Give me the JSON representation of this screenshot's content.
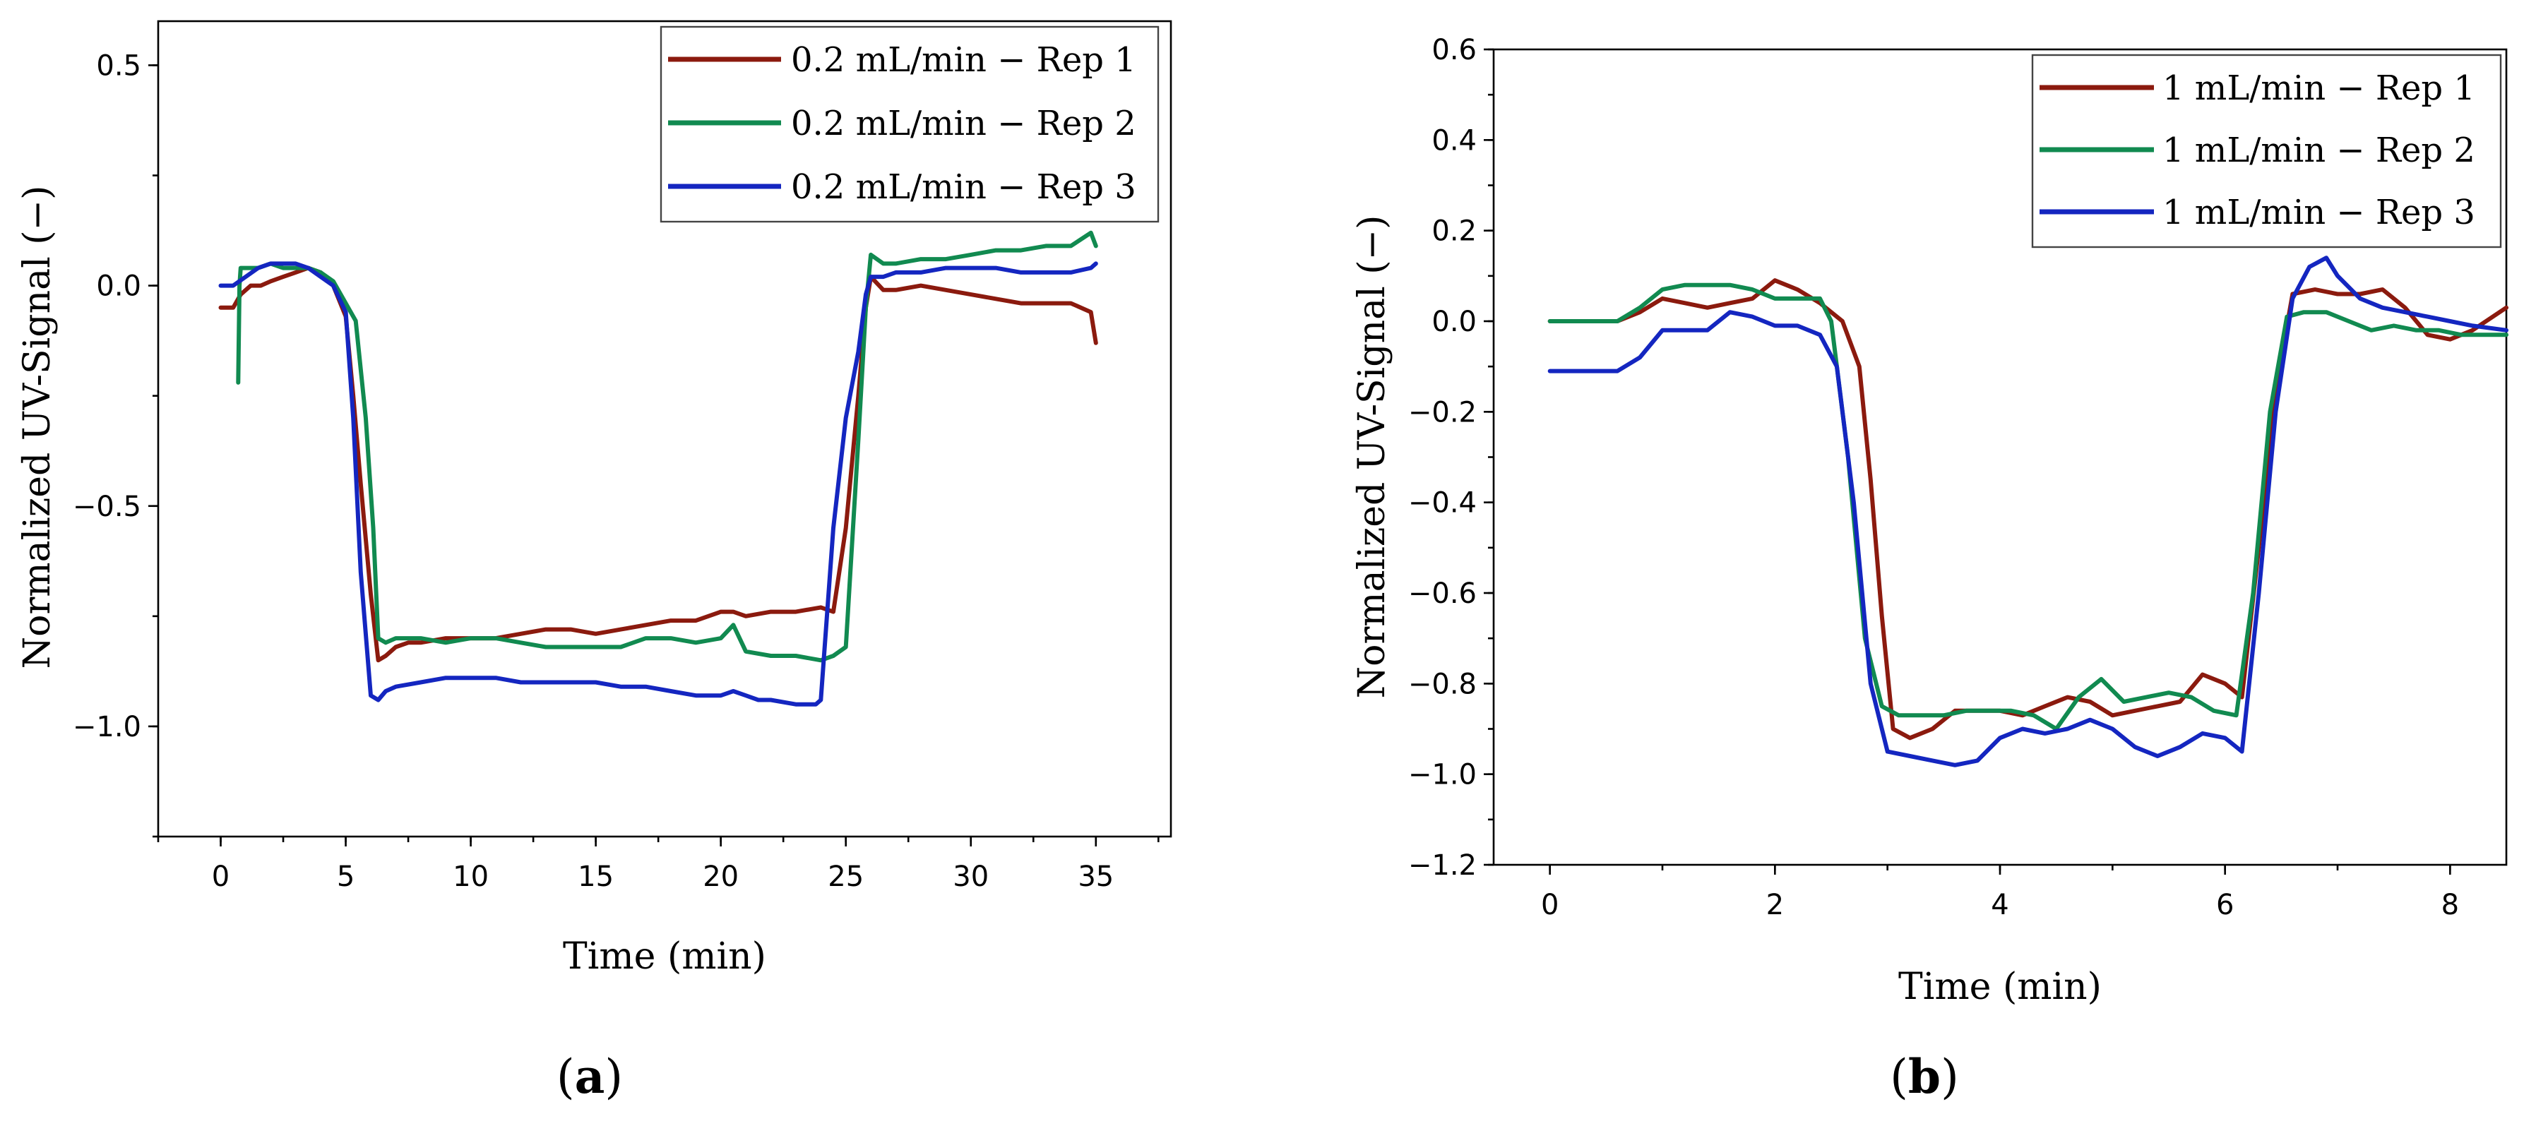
{
  "colors": {
    "rep1": "#8B1A0E",
    "rep2": "#118A50",
    "rep3": "#1426C0"
  },
  "chart_data": [
    {
      "id": "a",
      "type": "line",
      "panel_label": {
        "open": "(",
        "letter": "a",
        "close": ")"
      },
      "xlabel": "Time (min)",
      "ylabel": "Normalized UV-Signal (−)",
      "xlim": [
        -2.5,
        38
      ],
      "ylim": [
        -1.25,
        0.6
      ],
      "xticks": [
        0,
        5,
        10,
        15,
        20,
        25,
        30,
        35
      ],
      "xtick_labels": [
        "0",
        "5",
        "10",
        "15",
        "20",
        "25",
        "30",
        "35"
      ],
      "xminor": 2.5,
      "yticks": [
        0.5,
        0.0,
        -0.5,
        -1.0
      ],
      "ytick_labels": [
        "0.5",
        "0.0",
        "−0.5",
        "−1.0"
      ],
      "yminor": 0.25,
      "legend_position": "top-right",
      "series": [
        {
          "name": "0.2 mL/min − Rep 1",
          "color": "#8B1A0E",
          "x": [
            0,
            0.5,
            0.8,
            1.2,
            1.6,
            2.0,
            2.5,
            3.0,
            3.5,
            4.0,
            4.5,
            5.0,
            5.3,
            5.6,
            6.0,
            6.3,
            6.6,
            7.0,
            7.5,
            8.0,
            9.0,
            10.0,
            11.0,
            12.0,
            13.0,
            14.0,
            15.0,
            16.0,
            17.0,
            18.0,
            19.0,
            20.0,
            20.5,
            21.0,
            22.0,
            23.0,
            24.0,
            24.5,
            25.0,
            25.5,
            25.8,
            26.0,
            26.5,
            27.0,
            28.0,
            29.0,
            30.0,
            31.0,
            32.0,
            33.0,
            34.0,
            34.8,
            35.0
          ],
          "y": [
            -0.05,
            -0.05,
            -0.02,
            0.0,
            0.0,
            0.01,
            0.02,
            0.03,
            0.04,
            0.03,
            0.0,
            -0.07,
            -0.25,
            -0.45,
            -0.7,
            -0.85,
            -0.84,
            -0.82,
            -0.81,
            -0.81,
            -0.8,
            -0.8,
            -0.8,
            -0.79,
            -0.78,
            -0.78,
            -0.79,
            -0.78,
            -0.77,
            -0.76,
            -0.76,
            -0.74,
            -0.74,
            -0.75,
            -0.74,
            -0.74,
            -0.73,
            -0.74,
            -0.55,
            -0.25,
            -0.05,
            0.02,
            -0.01,
            -0.01,
            0.0,
            -0.01,
            -0.02,
            -0.03,
            -0.04,
            -0.04,
            -0.04,
            -0.06,
            -0.13
          ]
        },
        {
          "name": "0.2 mL/min − Rep 2",
          "color": "#118A50",
          "x": [
            0.7,
            0.75,
            0.8,
            1.0,
            1.5,
            2.0,
            2.5,
            3.0,
            3.5,
            4.0,
            4.5,
            5.0,
            5.4,
            5.8,
            6.1,
            6.3,
            6.6,
            7.0,
            8.0,
            9.0,
            10.0,
            11.0,
            12.0,
            13.0,
            14.0,
            15.0,
            16.0,
            17.0,
            18.0,
            19.0,
            20.0,
            20.5,
            21.0,
            22.0,
            23.0,
            24.0,
            24.5,
            25.0,
            25.5,
            25.8,
            26.0,
            26.5,
            27.0,
            28.0,
            29.0,
            30.0,
            31.0,
            32.0,
            33.0,
            34.0,
            34.8,
            35.0
          ],
          "y": [
            -0.22,
            0.0,
            0.04,
            0.04,
            0.04,
            0.05,
            0.04,
            0.04,
            0.04,
            0.03,
            0.01,
            -0.04,
            -0.08,
            -0.3,
            -0.55,
            -0.8,
            -0.81,
            -0.8,
            -0.8,
            -0.81,
            -0.8,
            -0.8,
            -0.81,
            -0.82,
            -0.82,
            -0.82,
            -0.82,
            -0.8,
            -0.8,
            -0.81,
            -0.8,
            -0.77,
            -0.83,
            -0.84,
            -0.84,
            -0.85,
            -0.84,
            -0.82,
            -0.35,
            -0.05,
            0.07,
            0.05,
            0.05,
            0.06,
            0.06,
            0.07,
            0.08,
            0.08,
            0.09,
            0.09,
            0.12,
            0.09
          ]
        },
        {
          "name": "0.2 mL/min − Rep 3",
          "color": "#1426C0",
          "x": [
            0,
            0.5,
            1.0,
            1.5,
            2.0,
            2.5,
            3.0,
            3.5,
            4.0,
            4.5,
            5.0,
            5.3,
            5.6,
            6.0,
            6.3,
            6.6,
            7.0,
            8.0,
            9.0,
            10.0,
            11.0,
            12.0,
            13.0,
            14.0,
            15.0,
            16.0,
            17.0,
            18.0,
            19.0,
            20.0,
            20.5,
            21.0,
            21.5,
            22.0,
            23.0,
            23.8,
            24.0,
            24.5,
            25.0,
            25.5,
            25.8,
            26.0,
            26.5,
            27.0,
            28.0,
            29.0,
            30.0,
            31.0,
            32.0,
            33.0,
            34.0,
            34.8,
            35.0
          ],
          "y": [
            0.0,
            0.0,
            0.02,
            0.04,
            0.05,
            0.05,
            0.05,
            0.04,
            0.02,
            0.0,
            -0.06,
            -0.3,
            -0.65,
            -0.93,
            -0.94,
            -0.92,
            -0.91,
            -0.9,
            -0.89,
            -0.89,
            -0.89,
            -0.9,
            -0.9,
            -0.9,
            -0.9,
            -0.91,
            -0.91,
            -0.92,
            -0.93,
            -0.93,
            -0.92,
            -0.93,
            -0.94,
            -0.94,
            -0.95,
            -0.95,
            -0.94,
            -0.55,
            -0.3,
            -0.15,
            -0.02,
            0.02,
            0.02,
            0.03,
            0.03,
            0.04,
            0.04,
            0.04,
            0.03,
            0.03,
            0.03,
            0.04,
            0.05
          ]
        }
      ]
    },
    {
      "id": "b",
      "type": "line",
      "panel_label": {
        "open": "(",
        "letter": "b",
        "close": ")"
      },
      "xlabel": "Time (min)",
      "ylabel": "Normalized UV-Signal (−)",
      "xlim": [
        -0.5,
        8.5
      ],
      "ylim": [
        -1.2,
        0.6
      ],
      "xticks": [
        0,
        2,
        4,
        6,
        8
      ],
      "xtick_labels": [
        "0",
        "2",
        "4",
        "6",
        "8"
      ],
      "xminor": 1,
      "yticks": [
        0.6,
        0.4,
        0.2,
        0.0,
        -0.2,
        -0.4,
        -0.6,
        -0.8,
        -1.0,
        -1.2
      ],
      "ytick_labels": [
        "0.6",
        "0.4",
        "0.2",
        "0.0",
        "−0.2",
        "−0.4",
        "−0.6",
        "−0.8",
        "−1.0",
        "−1.2"
      ],
      "yminor": 0.1,
      "legend_position": "top-right",
      "series": [
        {
          "name": "1 mL/min − Rep 1",
          "color": "#8B1A0E",
          "x": [
            0,
            0.6,
            0.8,
            1.0,
            1.2,
            1.4,
            1.6,
            1.8,
            2.0,
            2.2,
            2.4,
            2.6,
            2.75,
            2.85,
            2.95,
            3.05,
            3.2,
            3.4,
            3.6,
            3.8,
            4.0,
            4.2,
            4.4,
            4.6,
            4.8,
            5.0,
            5.2,
            5.4,
            5.6,
            5.8,
            6.0,
            6.15,
            6.3,
            6.45,
            6.6,
            6.8,
            7.0,
            7.2,
            7.4,
            7.6,
            7.8,
            8.0,
            8.2,
            8.5
          ],
          "y": [
            0.0,
            0.0,
            0.02,
            0.05,
            0.04,
            0.03,
            0.04,
            0.05,
            0.09,
            0.07,
            0.04,
            0.0,
            -0.1,
            -0.35,
            -0.65,
            -0.9,
            -0.92,
            -0.9,
            -0.86,
            -0.86,
            -0.86,
            -0.87,
            -0.85,
            -0.83,
            -0.84,
            -0.87,
            -0.86,
            -0.85,
            -0.84,
            -0.78,
            -0.8,
            -0.83,
            -0.5,
            -0.15,
            0.06,
            0.07,
            0.06,
            0.06,
            0.07,
            0.03,
            -0.03,
            -0.04,
            -0.02,
            0.03
          ]
        },
        {
          "name": "1 mL/min − Rep 2",
          "color": "#118A50",
          "x": [
            0,
            0.6,
            0.8,
            1.0,
            1.2,
            1.4,
            1.6,
            1.8,
            2.0,
            2.2,
            2.4,
            2.5,
            2.65,
            2.8,
            2.95,
            3.1,
            3.3,
            3.5,
            3.7,
            3.9,
            4.1,
            4.3,
            4.5,
            4.7,
            4.9,
            5.1,
            5.3,
            5.5,
            5.7,
            5.9,
            6.1,
            6.25,
            6.4,
            6.55,
            6.7,
            6.9,
            7.1,
            7.3,
            7.5,
            7.7,
            7.9,
            8.1,
            8.3,
            8.5
          ],
          "y": [
            0.0,
            0.0,
            0.03,
            0.07,
            0.08,
            0.08,
            0.08,
            0.07,
            0.05,
            0.05,
            0.05,
            0.0,
            -0.3,
            -0.7,
            -0.85,
            -0.87,
            -0.87,
            -0.87,
            -0.86,
            -0.86,
            -0.86,
            -0.87,
            -0.9,
            -0.83,
            -0.79,
            -0.84,
            -0.83,
            -0.82,
            -0.83,
            -0.86,
            -0.87,
            -0.6,
            -0.2,
            0.01,
            0.02,
            0.02,
            0.0,
            -0.02,
            -0.01,
            -0.02,
            -0.02,
            -0.03,
            -0.03,
            -0.03
          ]
        },
        {
          "name": "1 mL/min − Rep 3",
          "color": "#1426C0",
          "x": [
            0,
            0.6,
            0.8,
            1.0,
            1.2,
            1.4,
            1.6,
            1.8,
            2.0,
            2.2,
            2.4,
            2.55,
            2.7,
            2.85,
            3.0,
            3.2,
            3.4,
            3.6,
            3.8,
            4.0,
            4.2,
            4.4,
            4.6,
            4.8,
            5.0,
            5.2,
            5.4,
            5.6,
            5.8,
            6.0,
            6.15,
            6.3,
            6.45,
            6.6,
            6.75,
            6.9,
            7.0,
            7.2,
            7.4,
            7.6,
            7.8,
            8.0,
            8.2,
            8.5
          ],
          "y": [
            -0.11,
            -0.11,
            -0.08,
            -0.02,
            -0.02,
            -0.02,
            0.02,
            0.01,
            -0.01,
            -0.01,
            -0.03,
            -0.1,
            -0.4,
            -0.8,
            -0.95,
            -0.96,
            -0.97,
            -0.98,
            -0.97,
            -0.92,
            -0.9,
            -0.91,
            -0.9,
            -0.88,
            -0.9,
            -0.94,
            -0.96,
            -0.94,
            -0.91,
            -0.92,
            -0.95,
            -0.6,
            -0.2,
            0.05,
            0.12,
            0.14,
            0.1,
            0.05,
            0.03,
            0.02,
            0.01,
            0.0,
            -0.01,
            -0.02
          ]
        }
      ]
    }
  ]
}
